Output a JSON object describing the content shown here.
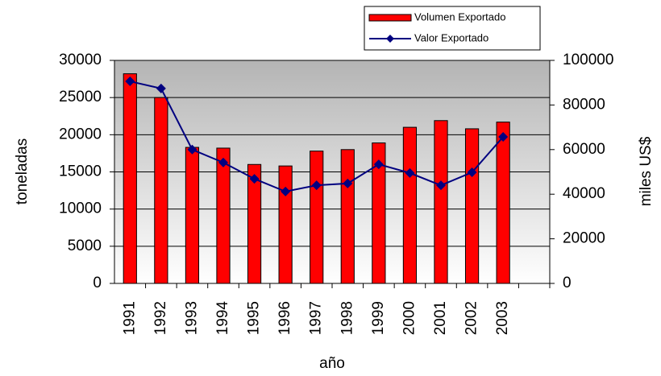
{
  "chart_data": {
    "type": "bar-line",
    "categories": [
      "1991",
      "1992",
      "1993",
      "1994",
      "1995",
      "1996",
      "1997",
      "1998",
      "1999",
      "2000",
      "2001",
      "2002",
      "2003",
      null
    ],
    "series": [
      {
        "name": "Volumen Exportado",
        "type": "bar",
        "color": "#ff0000",
        "values": [
          28200,
          25000,
          18300,
          18200,
          16000,
          15800,
          17800,
          18000,
          18900,
          21000,
          21900,
          20800,
          21700,
          null
        ]
      },
      {
        "name": "Valor Exportado",
        "type": "line",
        "axis": "y2",
        "color": "#000080",
        "values": [
          90600,
          87400,
          60000,
          54200,
          46900,
          41200,
          44000,
          44800,
          53400,
          49500,
          44000,
          49800,
          65700,
          null
        ]
      }
    ],
    "xlabel": "año",
    "ylabel": "toneladas",
    "y2label": "miles US$",
    "ylim": [
      0,
      30000
    ],
    "yticks": [
      0,
      5000,
      10000,
      15000,
      20000,
      25000,
      30000
    ],
    "y2lim": [
      0,
      100000
    ],
    "y2ticks": [
      0,
      20000,
      40000,
      60000,
      80000,
      100000
    ],
    "grid": true,
    "legend": "top"
  }
}
